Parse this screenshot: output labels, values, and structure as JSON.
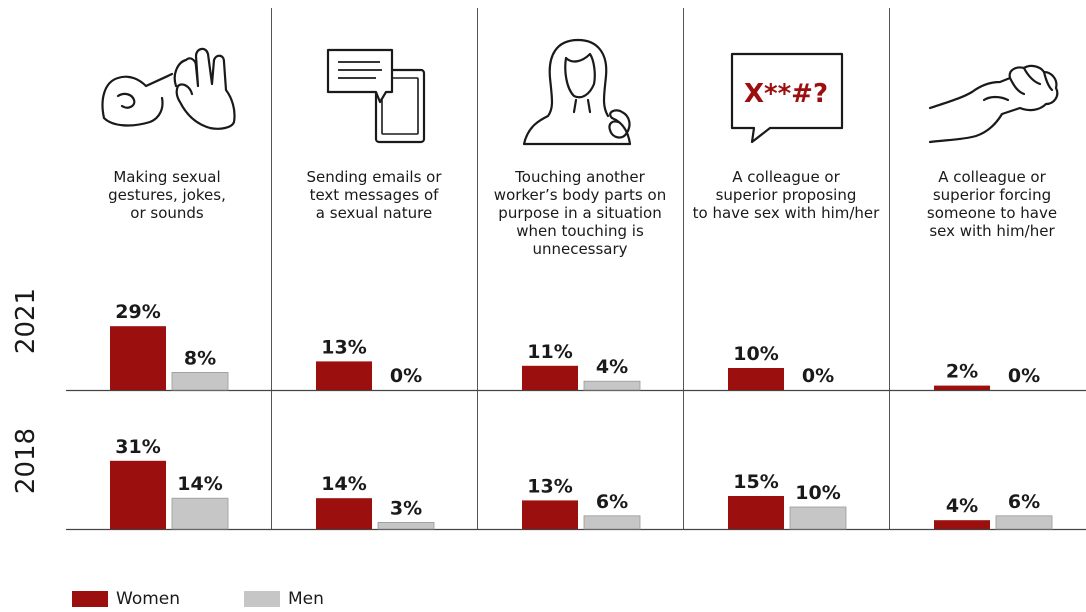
{
  "colors": {
    "women": "#9b0f0f",
    "men": "#c6c6c6",
    "axis": "#444444"
  },
  "legend": [
    {
      "name": "Women",
      "color": "#9b0f0f"
    },
    {
      "name": "Men",
      "color": "#c6c6c6"
    }
  ],
  "chart_data": {
    "type": "bar",
    "categories": [
      "Making sexual\ngestures, jokes,\nor sounds",
      "Sending emails or\ntext messages of\na sexual nature",
      "Touching another\nworker’s body parts on\npurpose in a situation\nwhen touching is\nunnecessary",
      "A colleague or\nsuperior proposing\nto have sex with him/her",
      "A colleague or\nsuperior forcing\nsomeone to have\nsex with him/her"
    ],
    "icons": [
      "hand-gesture-icon",
      "email-phone-icon",
      "woman-icon",
      "swear-speech-icon",
      "fist-icon"
    ],
    "panels": [
      {
        "year": "2021",
        "series": [
          {
            "name": "Women",
            "values": [
              29,
              13,
              11,
              10,
              2
            ],
            "labels": [
              "29%",
              "13%",
              "11%",
              "10%",
              "2%"
            ]
          },
          {
            "name": "Men",
            "values": [
              8,
              0,
              4,
              0,
              0
            ],
            "labels": [
              "8%",
              "0%",
              "4%",
              "0%",
              "0%"
            ]
          }
        ]
      },
      {
        "year": "2018",
        "series": [
          {
            "name": "Women",
            "values": [
              31,
              14,
              13,
              15,
              4
            ],
            "labels": [
              "31%",
              "14%",
              "13%",
              "15%",
              "4%"
            ]
          },
          {
            "name": "Men",
            "values": [
              14,
              3,
              6,
              10,
              6
            ],
            "labels": [
              "14%",
              "3%",
              "6%",
              "10%",
              "6%"
            ]
          }
        ]
      }
    ],
    "swear_text": "X**#?",
    "ylim": [
      0,
      35
    ]
  }
}
